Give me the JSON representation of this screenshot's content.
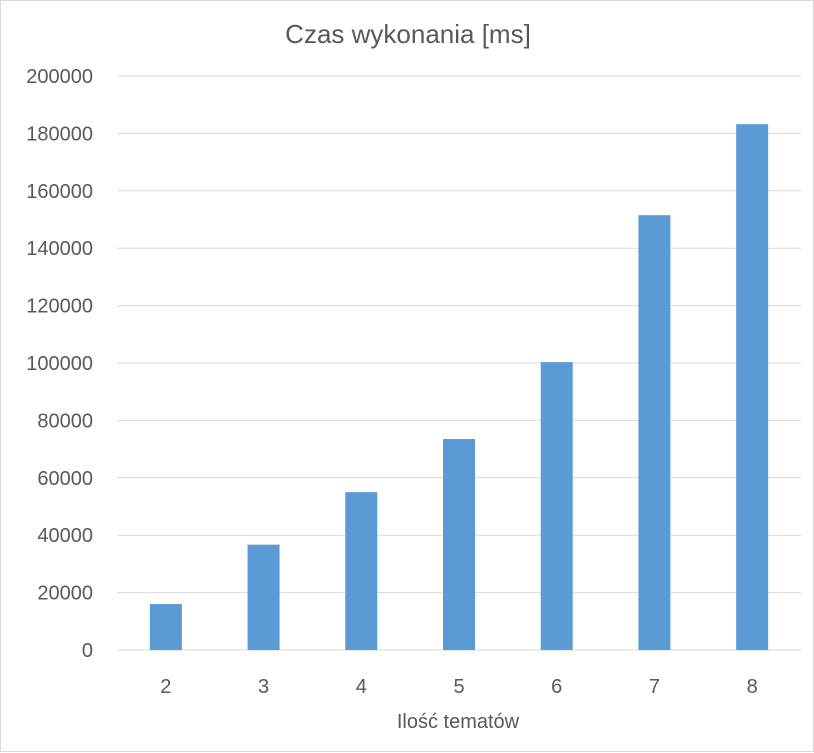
{
  "chart_data": {
    "type": "bar",
    "title": "Czas wykonania [ms]",
    "xlabel": "Ilość tematów",
    "ylabel": "",
    "categories": [
      "2",
      "3",
      "4",
      "5",
      "6",
      "7",
      "8"
    ],
    "series": [
      {
        "values": [
          16000,
          36700,
          55000,
          73500,
          100300,
          151500,
          183200
        ]
      }
    ],
    "ylim": [
      0,
      200000
    ],
    "yticks": [
      "0",
      "20000",
      "40000",
      "60000",
      "80000",
      "100000",
      "120000",
      "140000",
      "160000",
      "180000",
      "200000"
    ],
    "grid": true,
    "legend": "none",
    "bar_color": "#5b9bd5",
    "grid_color": "#d9d9d9"
  }
}
